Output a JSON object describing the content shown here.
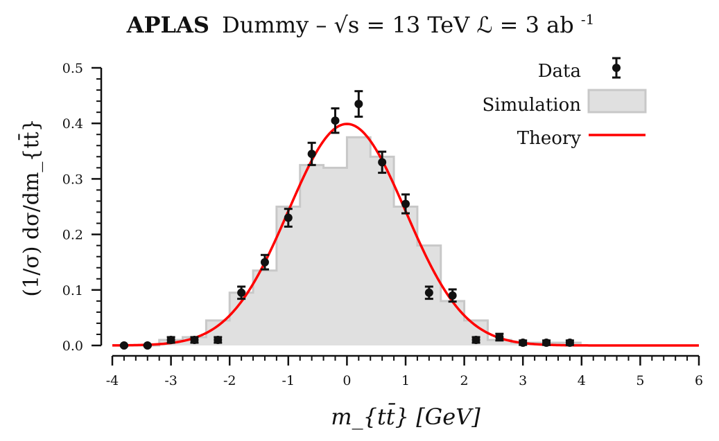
{
  "chart_data": {
    "type": "histogram-line-scatter",
    "title": {
      "bold": "APLAS",
      "rest": "Dummy – √s = 13 TeV  ℒ = 3 ab",
      "superscript": "-1"
    },
    "xlabel": "m_{tt̄} [GeV]",
    "ylabel": "(1/σ) dσ/dm_{tt̄}",
    "xlim": [
      -4,
      6
    ],
    "ylim": [
      0,
      0.5
    ],
    "xticks": [
      "-4",
      "-3",
      "-2",
      "-1",
      "0",
      "1",
      "2",
      "3",
      "4",
      "5",
      "6"
    ],
    "yticks": [
      "0.0",
      "0.1",
      "0.2",
      "0.3",
      "0.4",
      "0.5"
    ],
    "legend_position": "top-right",
    "series": [
      {
        "name": "Data",
        "kind": "errorbar",
        "color": "#111111",
        "x": [
          -3.8,
          -3.4,
          -3.0,
          -2.6,
          -2.2,
          -1.8,
          -1.4,
          -1.0,
          -0.6,
          -0.2,
          0.2,
          0.6,
          1.0,
          1.4,
          1.8,
          2.2,
          2.6,
          3.0,
          3.4,
          3.8
        ],
        "y": [
          0.0,
          0.0,
          0.01,
          0.01,
          0.01,
          0.095,
          0.15,
          0.23,
          0.345,
          0.405,
          0.435,
          0.33,
          0.255,
          0.095,
          0.09,
          0.01,
          0.015,
          0.005,
          0.005,
          0.005
        ],
        "yerr": [
          0.001,
          0.001,
          0.005,
          0.005,
          0.005,
          0.011,
          0.013,
          0.016,
          0.02,
          0.022,
          0.023,
          0.019,
          0.017,
          0.011,
          0.011,
          0.005,
          0.006,
          0.004,
          0.004,
          0.004
        ]
      },
      {
        "name": "Simulation",
        "kind": "step-histogram",
        "fill": "#e0e0e0",
        "edge": "#c8c8c8",
        "bin_edges": [
          -4.0,
          -3.6,
          -3.2,
          -2.8,
          -2.4,
          -2.0,
          -1.6,
          -1.2,
          -0.8,
          -0.4,
          0.0,
          0.4,
          0.8,
          1.2,
          1.6,
          2.0,
          2.4,
          2.8,
          3.2,
          3.6,
          4.0
        ],
        "values": [
          0.0,
          0.0,
          0.01,
          0.015,
          0.045,
          0.095,
          0.135,
          0.25,
          0.325,
          0.32,
          0.375,
          0.34,
          0.25,
          0.18,
          0.08,
          0.045,
          0.01,
          0.005,
          0.005,
          0.005
        ]
      },
      {
        "name": "Theory",
        "kind": "line",
        "color": "#ff0000",
        "model": {
          "mu": 0.0,
          "sigma": 1.0,
          "peak": 0.399
        },
        "x_range": [
          -4,
          6
        ]
      }
    ]
  }
}
